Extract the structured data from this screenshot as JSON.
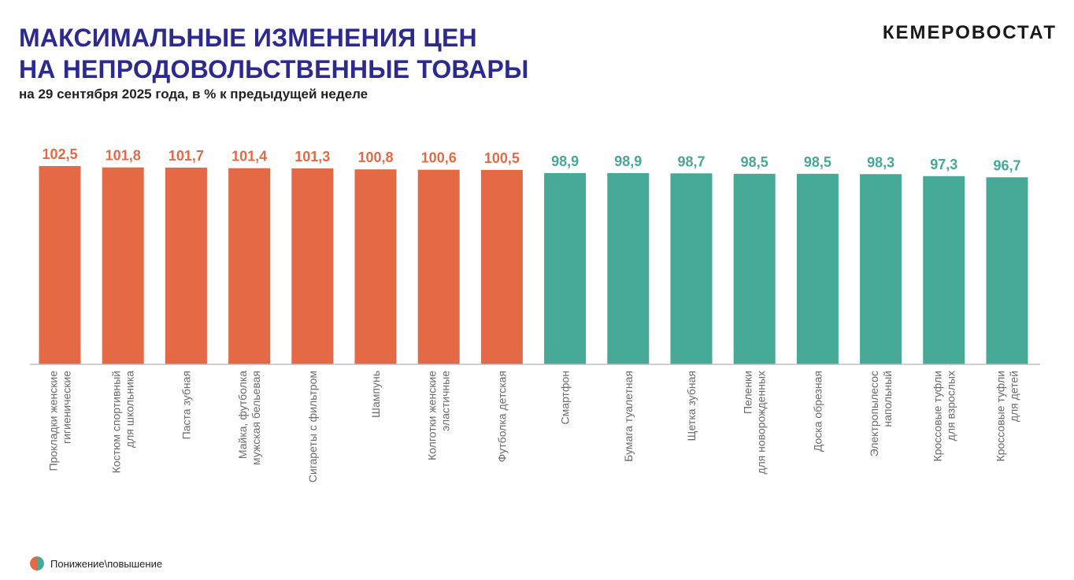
{
  "header": {
    "title_line1": "МАКСИМАЛЬНЫЕ ИЗМЕНЕНИЯ ЦЕН",
    "title_line2": "НА НЕПРОДОВОЛЬСТВЕННЫЕ ТОВАРЫ",
    "subtitle": "на 29 сентября 2025 года, в % к предыдущей неделе",
    "brand": "КЕМЕРОВОСТАТ"
  },
  "legend": {
    "label": "Понижение\\повышение",
    "colors": [
      "#e36a45",
      "#45a995"
    ]
  },
  "colors": {
    "increase": "#e36a45",
    "decrease": "#45a995",
    "title": "#2d2a8e",
    "category_text": "#6b6b6b",
    "baseline": "#bfbfbf"
  },
  "chart_data": {
    "type": "bar",
    "title": "МАКСИМАЛЬНЫЕ ИЗМЕНЕНИЯ ЦЕН НА НЕПРОДОВОЛЬСТВЕННЫЕ ТОВАРЫ",
    "subtitle": "на 29 сентября 2025 года, в % к предыдущей неделе",
    "xlabel": "",
    "ylabel": "",
    "ylim": [
      0,
      102.5
    ],
    "grid": false,
    "categories": [
      [
        "Прокладки женские",
        "гигиенические"
      ],
      [
        "Костюм спортивный",
        "для школьника"
      ],
      [
        "Паста зубная"
      ],
      [
        "Майка, футболка",
        "мужская бельевая"
      ],
      [
        "Сигареты с фильтром"
      ],
      [
        "Шампунь"
      ],
      [
        "Колготки женские",
        "эластичные"
      ],
      [
        "Футболка детская"
      ],
      [
        "Смартфон"
      ],
      [
        "Бумага туалетная"
      ],
      [
        "Щетка зубная"
      ],
      [
        "Пеленки",
        "для новорожденных"
      ],
      [
        "Доска обрезная"
      ],
      [
        "Электропылесос",
        "напольный"
      ],
      [
        "Кроссовые туфли",
        "для взрослых"
      ],
      [
        "Кроссовые туфли",
        "для детей"
      ]
    ],
    "values": [
      102.5,
      101.8,
      101.7,
      101.4,
      101.3,
      100.8,
      100.6,
      100.5,
      98.9,
      98.9,
      98.7,
      98.5,
      98.5,
      98.3,
      97.3,
      96.7
    ],
    "value_labels": [
      "102,5",
      "101,8",
      "101,7",
      "101,4",
      "101,3",
      "100,8",
      "100,6",
      "100,5",
      "98,9",
      "98,9",
      "98,7",
      "98,5",
      "98,5",
      "98,3",
      "97,3",
      "96,7"
    ]
  }
}
